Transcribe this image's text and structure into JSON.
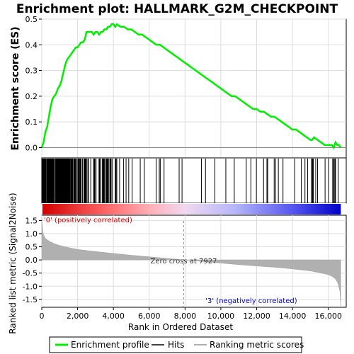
{
  "chart_data": {
    "type": "line",
    "title": "Enrichment plot: HALLMARK_G2M_CHECKPOINT",
    "ylabel_top": "Enrichment score (ES)",
    "ylabel_bottom": "Ranked list metric (Signal2Noise)",
    "xlabel": "Rank in Ordered Dataset",
    "xlim": [
      0,
      17000
    ],
    "top_ylim": [
      -0.04,
      0.5
    ],
    "top_yticks": [
      "0.0",
      "0.1",
      "0.2",
      "0.3",
      "0.4",
      "0.5"
    ],
    "bottom_ylim": [
      -1.8,
      1.7
    ],
    "bottom_yticks": [
      "1.5",
      "1.0",
      "0.5",
      "0.0",
      "-0.5",
      "-1.0",
      "-1.5"
    ],
    "xticks": [
      "0",
      "2,000",
      "4,000",
      "6,000",
      "8,000",
      "10,000",
      "12,000",
      "14,000",
      "16,000"
    ],
    "n_genes": 16700,
    "zero_cross": 7927,
    "zero_cross_label": "Zero cross at 7927",
    "pos_label": "'0' (positively correlated)",
    "neg_label": "'3' (negatively correlated)",
    "es_profile": {
      "x": [
        0,
        100,
        200,
        300,
        400,
        500,
        600,
        700,
        800,
        900,
        1000,
        1100,
        1200,
        1300,
        1400,
        1500,
        1600,
        1700,
        1800,
        1900,
        2000,
        2100,
        2200,
        2300,
        2400,
        2500,
        2600,
        2700,
        2800,
        2900,
        3000,
        3100,
        3200,
        3300,
        3400,
        3500,
        3600,
        3700,
        3800,
        3900,
        4000,
        4100,
        4200,
        4400,
        4600,
        4800,
        5000,
        5200,
        5400,
        5600,
        5800,
        6000,
        6200,
        6400,
        6600,
        6800,
        7000,
        7200,
        7400,
        7600,
        7800,
        8000,
        8200,
        8400,
        8600,
        8800,
        9000,
        9200,
        9400,
        9600,
        9800,
        10000,
        10200,
        10400,
        10600,
        10800,
        11000,
        11200,
        11400,
        11600,
        11800,
        12000,
        12200,
        12400,
        12600,
        12800,
        13000,
        13200,
        13400,
        13600,
        13800,
        14000,
        14200,
        14400,
        14600,
        14800,
        15000,
        15100,
        15200,
        15400,
        15600,
        15800,
        16000,
        16200,
        16300,
        16400,
        16500,
        16600,
        16700
      ],
      "y": [
        0.0,
        0.02,
        0.06,
        0.08,
        0.12,
        0.16,
        0.19,
        0.2,
        0.21,
        0.23,
        0.24,
        0.26,
        0.29,
        0.32,
        0.34,
        0.35,
        0.36,
        0.37,
        0.38,
        0.39,
        0.39,
        0.4,
        0.41,
        0.41,
        0.42,
        0.45,
        0.45,
        0.45,
        0.45,
        0.44,
        0.45,
        0.45,
        0.44,
        0.45,
        0.45,
        0.46,
        0.46,
        0.47,
        0.47,
        0.48,
        0.48,
        0.47,
        0.48,
        0.47,
        0.47,
        0.46,
        0.46,
        0.45,
        0.44,
        0.44,
        0.43,
        0.42,
        0.41,
        0.4,
        0.4,
        0.39,
        0.38,
        0.37,
        0.36,
        0.35,
        0.34,
        0.33,
        0.32,
        0.31,
        0.3,
        0.29,
        0.28,
        0.27,
        0.26,
        0.25,
        0.24,
        0.23,
        0.22,
        0.21,
        0.2,
        0.2,
        0.19,
        0.18,
        0.17,
        0.16,
        0.15,
        0.15,
        0.14,
        0.14,
        0.13,
        0.12,
        0.12,
        0.11,
        0.1,
        0.09,
        0.08,
        0.07,
        0.07,
        0.06,
        0.05,
        0.04,
        0.03,
        0.03,
        0.04,
        0.03,
        0.02,
        0.01,
        0.01,
        0.01,
        0.0,
        0.02,
        0.01,
        0.01,
        0.0
      ]
    },
    "metric_curve": {
      "x": [
        0,
        50,
        100,
        200,
        400,
        700,
        1000,
        1500,
        2000,
        3000,
        4000,
        5000,
        6000,
        7000,
        7927,
        9000,
        10000,
        11000,
        12000,
        13000,
        14000,
        14500,
        15000,
        15500,
        16000,
        16200,
        16400,
        16550,
        16650,
        16700
      ],
      "y": [
        1.6,
        1.1,
        0.95,
        0.82,
        0.72,
        0.62,
        0.55,
        0.47,
        0.4,
        0.32,
        0.25,
        0.18,
        0.12,
        0.06,
        0.0,
        -0.06,
        -0.12,
        -0.18,
        -0.23,
        -0.28,
        -0.34,
        -0.38,
        -0.42,
        -0.48,
        -0.56,
        -0.62,
        -0.72,
        -0.9,
        -1.2,
        -1.75
      ]
    },
    "legend": {
      "placement": "bottom",
      "entries": [
        "Enrichment profile",
        "Hits",
        "Ranking metric scores"
      ]
    },
    "colors": {
      "profile": "#00ee00",
      "hits": "#000000",
      "metric": "#b0b0b0",
      "grid": "#dddddd",
      "pos": "#cc0000",
      "neg": "#0000cc",
      "bar_pos": "#ff0000",
      "bar_neg": "#0000ff"
    }
  }
}
